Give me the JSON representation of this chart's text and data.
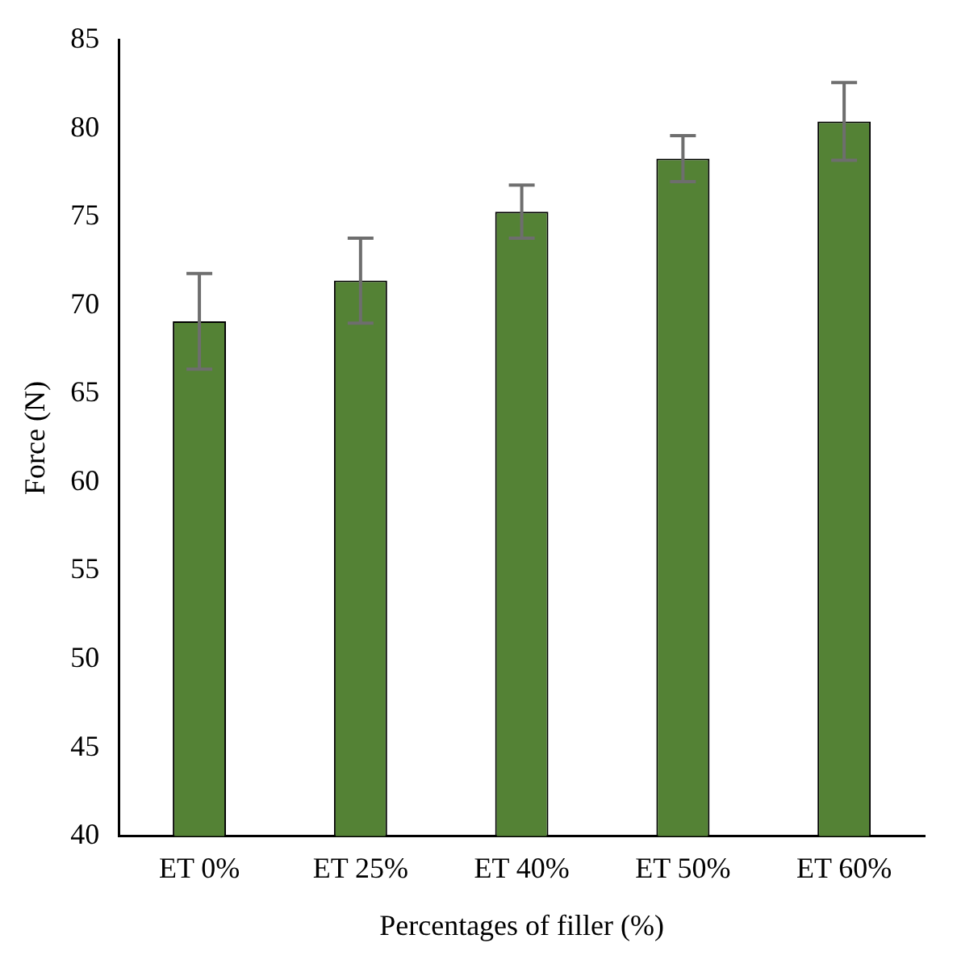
{
  "chart_data": {
    "type": "bar",
    "xlabel": "Percentages of filler (%)",
    "ylabel": "Force (N)",
    "categories": [
      "ET 0%",
      "ET 25%",
      "ET 40%",
      "ET 50%",
      "ET 60%"
    ],
    "values": [
      69.1,
      71.4,
      75.3,
      78.3,
      80.4
    ],
    "errors": [
      2.7,
      2.4,
      1.5,
      1.3,
      2.2
    ],
    "color": "#548235",
    "ylim": [
      40,
      85
    ],
    "yticks": [
      40,
      45,
      50,
      55,
      60,
      65,
      70,
      75,
      80,
      85
    ],
    "grid": false,
    "legend": false
  }
}
